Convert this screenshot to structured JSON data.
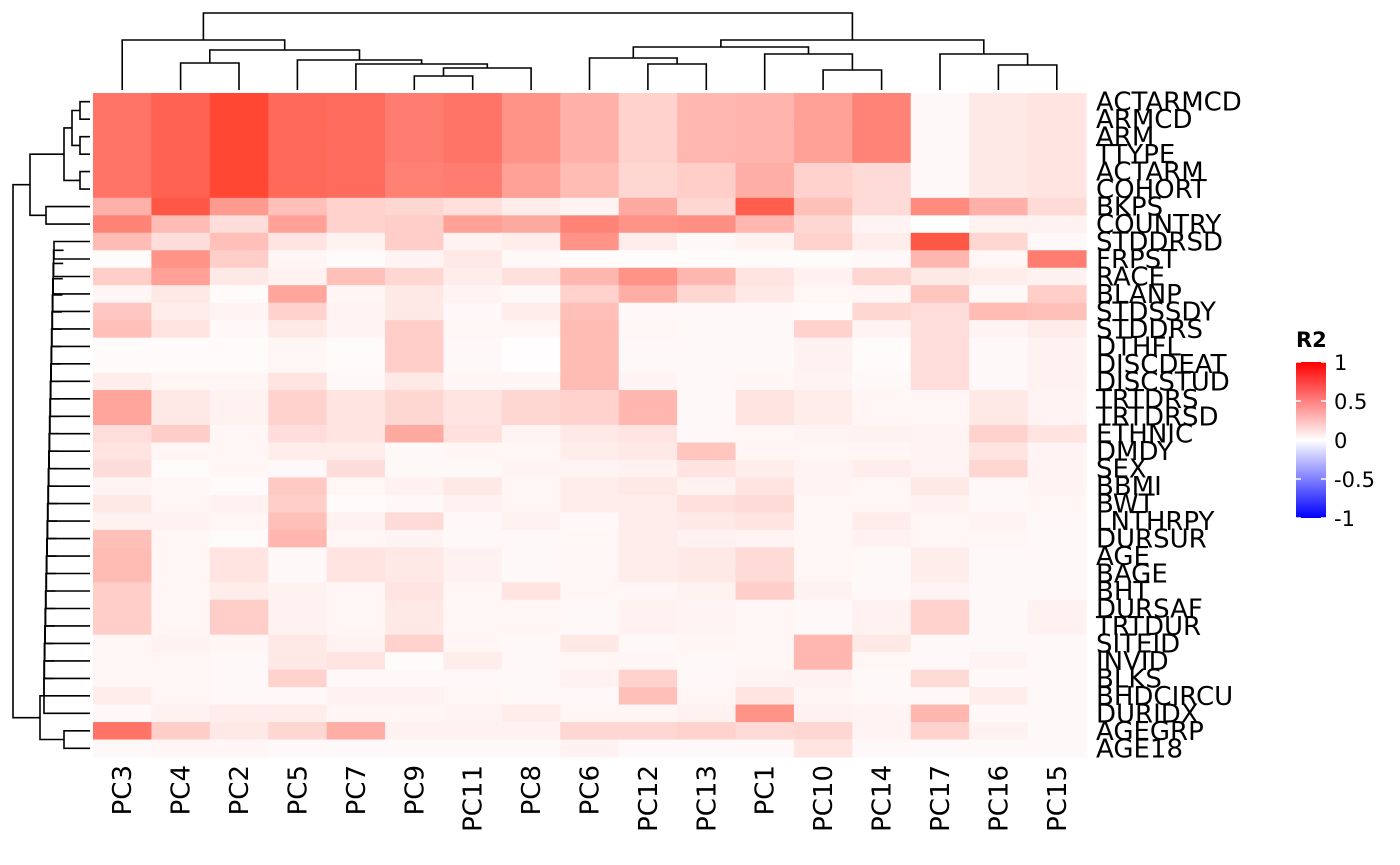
{
  "chart_data": {
    "type": "heatmap",
    "title": "",
    "legend": {
      "title": "R2",
      "ticks": [
        "1",
        "0.5",
        "0",
        "-0.5",
        "-1"
      ],
      "tick_values": [
        1,
        0.5,
        0,
        -0.5,
        -1
      ],
      "range": [
        -1,
        1
      ],
      "colors": {
        "low": "#0000FF",
        "mid": "#FFFFFF",
        "high": "#FF0000"
      },
      "position": "right"
    },
    "columns": [
      "PC3",
      "PC4",
      "PC2",
      "PC5",
      "PC7",
      "PC9",
      "PC11",
      "PC8",
      "PC6",
      "PC12",
      "PC13",
      "PC1",
      "PC10",
      "PC14",
      "PC17",
      "PC16",
      "PC15"
    ],
    "rows": [
      "ACTARMCD",
      "ARMCD",
      "ARM",
      "TTYPE",
      "ACTARM",
      "COHORT",
      "BKPS",
      "COUNTRY",
      "STDDRSD",
      "FRPST",
      "RACE",
      "BLANP",
      "STDSSDY",
      "STDDRS",
      "DTHFL",
      "DISCDEAT",
      "DISCSTUD",
      "TRTDRS",
      "TRTDRSD",
      "ETHNIC",
      "DMDY",
      "SEX",
      "BBMI",
      "BWT",
      "LNTHRPY",
      "DURSUR",
      "AGE",
      "BAGE",
      "BHT",
      "DURSAF",
      "TRTDUR",
      "SITEID",
      "INVID",
      "BLKS",
      "BHDCIRCU",
      "DURIDX",
      "AGEGRP",
      "AGE18"
    ],
    "values": [
      [
        0.62,
        0.7,
        0.82,
        0.67,
        0.66,
        0.58,
        0.62,
        0.48,
        0.35,
        0.2,
        0.32,
        0.33,
        0.42,
        0.55,
        0.03,
        0.1,
        0.12
      ],
      [
        0.62,
        0.7,
        0.82,
        0.67,
        0.66,
        0.58,
        0.62,
        0.48,
        0.35,
        0.2,
        0.32,
        0.33,
        0.42,
        0.55,
        0.03,
        0.1,
        0.12
      ],
      [
        0.62,
        0.7,
        0.82,
        0.67,
        0.66,
        0.58,
        0.62,
        0.48,
        0.35,
        0.2,
        0.32,
        0.33,
        0.42,
        0.55,
        0.03,
        0.1,
        0.12
      ],
      [
        0.62,
        0.7,
        0.82,
        0.67,
        0.66,
        0.58,
        0.62,
        0.48,
        0.35,
        0.2,
        0.32,
        0.33,
        0.42,
        0.55,
        0.03,
        0.1,
        0.12
      ],
      [
        0.62,
        0.7,
        0.82,
        0.67,
        0.66,
        0.56,
        0.58,
        0.42,
        0.3,
        0.18,
        0.22,
        0.36,
        0.2,
        0.16,
        0.03,
        0.1,
        0.12
      ],
      [
        0.62,
        0.7,
        0.82,
        0.67,
        0.66,
        0.56,
        0.58,
        0.42,
        0.3,
        0.18,
        0.22,
        0.36,
        0.2,
        0.16,
        0.03,
        0.1,
        0.12
      ],
      [
        0.35,
        0.75,
        0.45,
        0.28,
        0.2,
        0.18,
        0.14,
        0.08,
        0.05,
        0.38,
        0.18,
        0.72,
        0.28,
        0.16,
        0.52,
        0.35,
        0.16
      ],
      [
        0.55,
        0.3,
        0.15,
        0.42,
        0.2,
        0.22,
        0.42,
        0.38,
        0.55,
        0.48,
        0.5,
        0.32,
        0.18,
        0.05,
        0.0,
        0.06,
        0.06
      ],
      [
        0.3,
        0.15,
        0.28,
        0.12,
        0.06,
        0.22,
        0.06,
        0.08,
        0.48,
        0.08,
        0.03,
        0.06,
        0.2,
        0.08,
        0.75,
        0.18,
        0.03
      ],
      [
        0.02,
        0.48,
        0.22,
        0.04,
        0.02,
        0.05,
        0.1,
        0.03,
        0.02,
        0.02,
        0.02,
        0.02,
        0.02,
        0.03,
        0.32,
        0.04,
        0.58
      ],
      [
        0.22,
        0.42,
        0.1,
        0.06,
        0.28,
        0.18,
        0.08,
        0.14,
        0.32,
        0.48,
        0.32,
        0.12,
        0.06,
        0.18,
        0.1,
        0.08,
        0.06
      ],
      [
        0.04,
        0.1,
        0.02,
        0.4,
        0.04,
        0.1,
        0.05,
        0.03,
        0.2,
        0.36,
        0.18,
        0.1,
        0.04,
        0.04,
        0.26,
        0.03,
        0.22
      ],
      [
        0.25,
        0.08,
        0.05,
        0.2,
        0.05,
        0.1,
        0.03,
        0.08,
        0.28,
        0.03,
        0.03,
        0.03,
        0.02,
        0.18,
        0.15,
        0.3,
        0.28
      ],
      [
        0.28,
        0.12,
        0.03,
        0.1,
        0.05,
        0.22,
        0.04,
        0.04,
        0.3,
        0.04,
        0.03,
        0.03,
        0.2,
        0.05,
        0.15,
        0.05,
        0.08
      ],
      [
        0.02,
        0.02,
        0.02,
        0.04,
        0.02,
        0.22,
        0.03,
        0.01,
        0.3,
        0.03,
        0.03,
        0.03,
        0.06,
        0.02,
        0.15,
        0.03,
        0.06
      ],
      [
        0.02,
        0.02,
        0.02,
        0.04,
        0.02,
        0.22,
        0.03,
        0.01,
        0.3,
        0.03,
        0.03,
        0.03,
        0.06,
        0.02,
        0.15,
        0.03,
        0.06
      ],
      [
        0.08,
        0.04,
        0.04,
        0.12,
        0.03,
        0.1,
        0.04,
        0.04,
        0.3,
        0.05,
        0.03,
        0.04,
        0.05,
        0.03,
        0.15,
        0.03,
        0.06
      ],
      [
        0.4,
        0.1,
        0.06,
        0.2,
        0.12,
        0.18,
        0.12,
        0.18,
        0.2,
        0.32,
        0.03,
        0.12,
        0.08,
        0.04,
        0.04,
        0.1,
        0.05
      ],
      [
        0.4,
        0.1,
        0.06,
        0.2,
        0.12,
        0.18,
        0.12,
        0.18,
        0.2,
        0.32,
        0.03,
        0.12,
        0.08,
        0.04,
        0.04,
        0.1,
        0.05
      ],
      [
        0.15,
        0.22,
        0.04,
        0.15,
        0.12,
        0.38,
        0.14,
        0.05,
        0.1,
        0.12,
        0.03,
        0.04,
        0.05,
        0.06,
        0.05,
        0.2,
        0.12
      ],
      [
        0.12,
        0.04,
        0.04,
        0.08,
        0.08,
        0.03,
        0.04,
        0.04,
        0.08,
        0.1,
        0.26,
        0.04,
        0.04,
        0.04,
        0.05,
        0.12,
        0.05
      ],
      [
        0.15,
        0.02,
        0.04,
        0.03,
        0.15,
        0.03,
        0.03,
        0.05,
        0.05,
        0.06,
        0.12,
        0.08,
        0.05,
        0.08,
        0.05,
        0.18,
        0.05
      ],
      [
        0.05,
        0.04,
        0.02,
        0.24,
        0.04,
        0.06,
        0.1,
        0.04,
        0.08,
        0.1,
        0.06,
        0.12,
        0.05,
        0.04,
        0.1,
        0.03,
        0.05
      ],
      [
        0.1,
        0.04,
        0.06,
        0.22,
        0.02,
        0.03,
        0.06,
        0.04,
        0.08,
        0.08,
        0.14,
        0.16,
        0.04,
        0.04,
        0.06,
        0.03,
        0.04
      ],
      [
        0.06,
        0.06,
        0.04,
        0.28,
        0.06,
        0.16,
        0.03,
        0.06,
        0.03,
        0.08,
        0.1,
        0.12,
        0.04,
        0.08,
        0.04,
        0.05,
        0.03
      ],
      [
        0.28,
        0.04,
        0.02,
        0.32,
        0.04,
        0.05,
        0.03,
        0.03,
        0.04,
        0.08,
        0.06,
        0.05,
        0.04,
        0.06,
        0.04,
        0.04,
        0.03
      ],
      [
        0.3,
        0.04,
        0.12,
        0.03,
        0.12,
        0.1,
        0.06,
        0.03,
        0.04,
        0.08,
        0.1,
        0.16,
        0.04,
        0.03,
        0.08,
        0.03,
        0.03
      ],
      [
        0.3,
        0.04,
        0.12,
        0.03,
        0.12,
        0.1,
        0.06,
        0.03,
        0.04,
        0.08,
        0.1,
        0.16,
        0.04,
        0.03,
        0.08,
        0.03,
        0.03
      ],
      [
        0.22,
        0.04,
        0.08,
        0.06,
        0.04,
        0.12,
        0.04,
        0.12,
        0.04,
        0.04,
        0.06,
        0.22,
        0.06,
        0.03,
        0.05,
        0.03,
        0.03
      ],
      [
        0.22,
        0.04,
        0.22,
        0.06,
        0.04,
        0.1,
        0.04,
        0.04,
        0.03,
        0.06,
        0.05,
        0.04,
        0.03,
        0.06,
        0.2,
        0.03,
        0.06
      ],
      [
        0.22,
        0.04,
        0.22,
        0.06,
        0.04,
        0.1,
        0.04,
        0.04,
        0.03,
        0.06,
        0.05,
        0.04,
        0.03,
        0.06,
        0.2,
        0.03,
        0.06
      ],
      [
        0.04,
        0.06,
        0.04,
        0.1,
        0.06,
        0.2,
        0.04,
        0.03,
        0.1,
        0.03,
        0.04,
        0.04,
        0.32,
        0.1,
        0.03,
        0.03,
        0.03
      ],
      [
        0.04,
        0.04,
        0.03,
        0.1,
        0.12,
        0.02,
        0.08,
        0.03,
        0.04,
        0.04,
        0.03,
        0.04,
        0.32,
        0.04,
        0.03,
        0.05,
        0.03
      ],
      [
        0.04,
        0.04,
        0.03,
        0.2,
        0.03,
        0.03,
        0.03,
        0.03,
        0.06,
        0.2,
        0.03,
        0.05,
        0.06,
        0.03,
        0.16,
        0.03,
        0.03
      ],
      [
        0.08,
        0.04,
        0.03,
        0.03,
        0.06,
        0.06,
        0.04,
        0.03,
        0.03,
        0.28,
        0.04,
        0.12,
        0.04,
        0.03,
        0.03,
        0.08,
        0.03
      ],
      [
        0.03,
        0.06,
        0.08,
        0.08,
        0.04,
        0.04,
        0.05,
        0.08,
        0.04,
        0.04,
        0.06,
        0.48,
        0.06,
        0.05,
        0.32,
        0.03,
        0.03
      ],
      [
        0.62,
        0.22,
        0.1,
        0.18,
        0.36,
        0.06,
        0.06,
        0.06,
        0.18,
        0.18,
        0.2,
        0.16,
        0.18,
        0.05,
        0.2,
        0.06,
        0.03
      ],
      [
        0.03,
        0.04,
        0.04,
        0.03,
        0.03,
        0.03,
        0.03,
        0.03,
        0.06,
        0.03,
        0.03,
        0.03,
        0.12,
        0.03,
        0.03,
        0.03,
        0.03
      ]
    ],
    "x_dendrogram": true,
    "y_dendrogram": true
  }
}
